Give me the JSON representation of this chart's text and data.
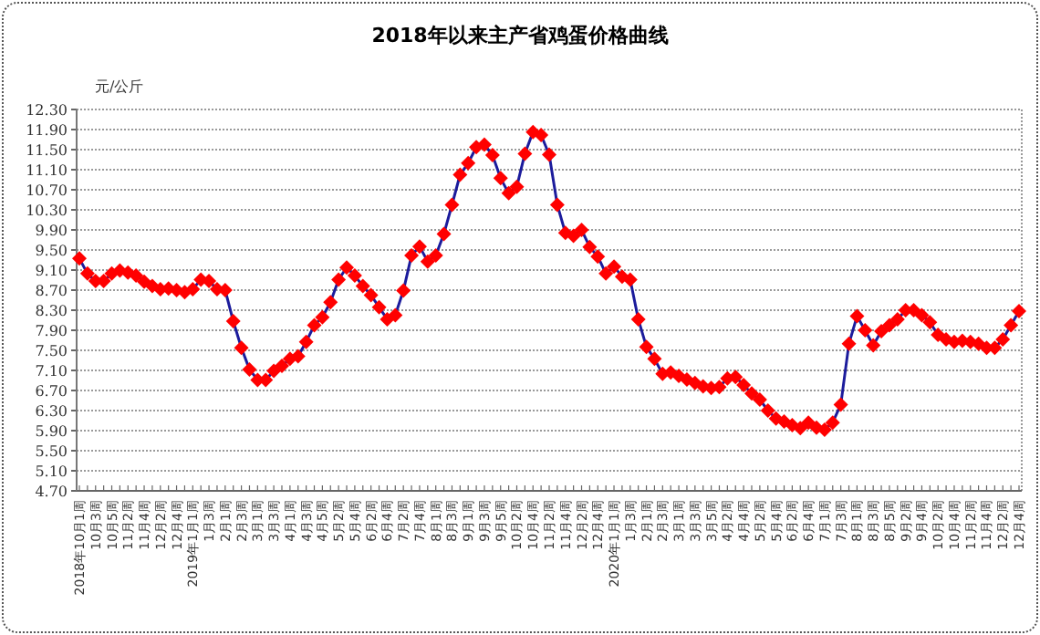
{
  "chart_data": {
    "type": "line",
    "title": "2018年以来主产省鸡蛋价格曲线",
    "ylabel": "元/公斤",
    "categories": [
      "2018年10月1周",
      null,
      "10月3周",
      null,
      "10月5周",
      null,
      "11月2周",
      null,
      "11月4周",
      null,
      "12月2周",
      null,
      "12月4周",
      null,
      "2019年1月1周",
      null,
      "1月3周",
      null,
      "2月1周",
      null,
      "2月3周",
      null,
      "3月1周",
      null,
      "3月3周",
      null,
      "4月1周",
      null,
      "4月3周",
      null,
      "4月5周",
      null,
      "5月2周",
      null,
      "5月4周",
      null,
      "6月2周",
      null,
      "6月4周",
      null,
      "7月2周",
      null,
      "7月4周",
      null,
      "8月1周",
      null,
      "8月3周",
      null,
      "9月1周",
      null,
      "9月3周",
      null,
      "9月5周",
      null,
      "10月2周",
      null,
      "10月4周",
      null,
      "11月2周",
      null,
      "11月4周",
      null,
      "12月2周",
      null,
      "12月4周",
      null,
      "2020年1月1周",
      null,
      "1月3周",
      null,
      "2月1周",
      null,
      "2月3周",
      null,
      "3月1周",
      null,
      "3月3周",
      null,
      "3月5周",
      null,
      "4月2周",
      null,
      "4月4周",
      null,
      "5月2周",
      null,
      "5月4周",
      null,
      "6月2周",
      null,
      "6月4周",
      null,
      "7月1周",
      null,
      "7月3周",
      null,
      "8月1周",
      null,
      "8月3周",
      null,
      "8月5周",
      null,
      "9月2周",
      null,
      "9月4周",
      null,
      "10月2周",
      null,
      "10月4周",
      null,
      "11月2周",
      null,
      "11月4周",
      null,
      "12月2周",
      null,
      "12月4周"
    ],
    "series": [
      {
        "color": "#1c1c9c",
        "colors": [
          "#ff0000",
          "#ff0000",
          "#ff0000",
          "#ff0000",
          "#ff0000",
          "#ff0000",
          "#ff0000",
          "#ff0000",
          "#ff0000",
          "#ff0000",
          "#ff0000",
          "#ff0000",
          "#ff0000",
          "#ff0000",
          "#ff0000",
          "#ff0000",
          "#ff0000",
          "#ff0000",
          "#ff0000",
          "#ff0000",
          "#ff0000",
          "#ff0000",
          "#ff0000",
          "#ff0000",
          "#ff0000",
          "#ff0000",
          "#ff0000",
          "#ff0000",
          "#ff0000",
          "#ff0000",
          "#ff0000",
          "#ff0000",
          "#ff0000",
          "#ff0000",
          "#ff0000",
          "#ff0000",
          "#ff0000",
          "#ff0000",
          "#ff0000",
          "#ff0000",
          "#ff0000",
          "#ff0000",
          "#ff0000",
          "#ff0000",
          "#ff0000",
          "#ff0000",
          "#ff0000",
          "#ff0000",
          "#ff0000",
          "#ff0000",
          "#ff0000",
          "#ff0000",
          "#ff0000",
          "#ff0000",
          "#ff0000",
          "#ff0000",
          "#ff0000",
          "#ff0000",
          "#ff0000",
          "#ff0000",
          "#ff0000",
          "#ff0000",
          "#ff0000",
          "#ff0000",
          "#ff0000",
          "#ff0000",
          "#ff0000",
          "#ff0000",
          "#ff0000",
          "#ff0000",
          "#ff0000",
          "#ff0000",
          "#ff0000",
          "#ff0000",
          "#ff0000",
          "#ff0000",
          "#ff0000",
          "#ff0000",
          "#ff0000",
          "#ff0000",
          "#ff0000",
          "#ff0000",
          "#ff0000",
          "#ff0000",
          "#ff0000",
          "#ff0000",
          "#ff0000",
          "#ff0000",
          "#ff0000",
          "#ff0000",
          "#ff0000",
          "#ff0000",
          "#ff0000",
          "#ff0000",
          "#ff0000",
          "#ff0000",
          "#ff0000",
          "#ff0000",
          "#ff0000",
          "#ff0000",
          "#ff0000",
          "#ff0000",
          "#ff0000",
          "#ff0000",
          "#ff0000",
          "#ff0000",
          "#ff0000",
          "#ff0000",
          "#ff0000",
          "#ff0000",
          "#ff0000",
          "#ff0000",
          "#ff0000",
          "#ff0000",
          "#ff0000",
          "#ff0000",
          "#ff0000"
        ],
        "values": [
          9.33,
          9.03,
          8.88,
          8.88,
          9.03,
          9.09,
          9.05,
          8.99,
          8.87,
          8.78,
          8.72,
          8.73,
          8.7,
          8.66,
          8.72,
          8.91,
          8.88,
          8.72,
          8.7,
          8.08,
          7.55,
          7.12,
          6.91,
          6.91,
          7.09,
          7.19,
          7.33,
          7.38,
          7.67,
          8.0,
          8.16,
          8.46,
          8.91,
          9.15,
          8.99,
          8.78,
          8.6,
          8.36,
          8.12,
          8.2,
          8.69,
          9.39,
          9.57,
          9.27,
          9.39,
          9.82,
          10.4,
          11.0,
          11.23,
          11.55,
          11.6,
          11.39,
          10.93,
          10.63,
          10.76,
          11.42,
          11.85,
          11.79,
          11.4,
          10.4,
          9.84,
          9.78,
          9.9,
          9.56,
          9.37,
          9.03,
          9.17,
          8.97,
          8.91,
          8.12,
          7.57,
          7.33,
          7.03,
          7.06,
          6.99,
          6.92,
          6.85,
          6.78,
          6.75,
          6.77,
          6.94,
          6.97,
          6.81,
          6.64,
          6.52,
          6.3,
          6.14,
          6.08,
          6.01,
          5.95,
          6.06,
          5.96,
          5.92,
          6.06,
          6.42,
          7.63,
          8.18,
          7.9,
          7.6,
          7.88,
          8.0,
          8.12,
          8.3,
          8.3,
          8.2,
          8.06,
          7.81,
          7.72,
          7.67,
          7.69,
          7.67,
          7.63,
          7.55,
          7.55,
          7.72,
          8.0,
          8.28
        ]
      }
    ],
    "ylim": [
      4.7,
      12.3
    ],
    "yticks": [
      {
        "value": 4.7,
        "label": "4.70"
      },
      {
        "value": 5.1,
        "label": "5.10"
      },
      {
        "value": 5.5,
        "label": "5.50"
      },
      {
        "value": 5.9,
        "label": "5.90"
      },
      {
        "value": 6.3,
        "label": "6.30"
      },
      {
        "value": 6.7,
        "label": "6.70"
      },
      {
        "value": 7.1,
        "label": "7.10"
      },
      {
        "value": 7.5,
        "label": "7.50"
      },
      {
        "value": 7.9,
        "label": "7.90"
      },
      {
        "value": 8.3,
        "label": "8.30"
      },
      {
        "value": 8.7,
        "label": "8.70"
      },
      {
        "value": 9.1,
        "label": "9.10"
      },
      {
        "value": 9.5,
        "label": "9.50"
      },
      {
        "value": 9.9,
        "label": "9.90"
      },
      {
        "value": 10.3,
        "label": "10.30"
      },
      {
        "value": 10.7,
        "label": "10.70"
      },
      {
        "value": 11.1,
        "label": "11.10"
      },
      {
        "value": 11.5,
        "label": "11.50"
      },
      {
        "value": 11.9,
        "label": "11.90"
      },
      {
        "value": 12.3,
        "label": "12.30"
      }
    ],
    "grid": "y",
    "marker": "diamond",
    "line_style": "solid"
  }
}
